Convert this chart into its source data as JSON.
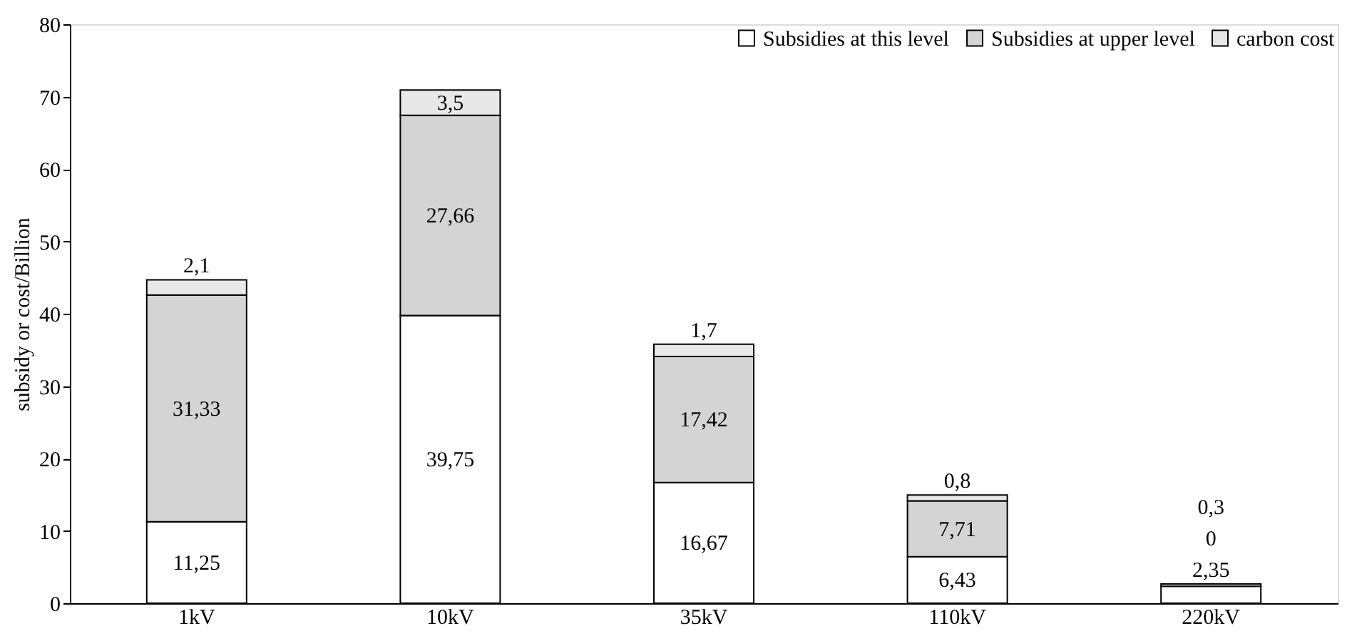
{
  "chart_data": {
    "type": "bar",
    "stacked": true,
    "ylabel": "subsidy or cost/Billion",
    "categories": [
      "1kV",
      "10kV",
      "35kV",
      "110kV",
      "220kV"
    ],
    "series": [
      {
        "name": "Subsidies at this level",
        "color": "#ffffff",
        "values": [
          11.25,
          39.75,
          16.67,
          6.43,
          2.35
        ],
        "value_labels": [
          "11,25",
          "39,75",
          "16,67",
          "6,43",
          "2,35"
        ]
      },
      {
        "name": "Subsidies at upper level",
        "color": "#d4d4d4",
        "values": [
          31.33,
          27.66,
          17.42,
          7.71,
          0
        ],
        "value_labels": [
          "31,33",
          "27,66",
          "17,42",
          "7,71",
          "0"
        ]
      },
      {
        "name": "carbon cost",
        "color": "#e8e8e8",
        "values": [
          2.1,
          3.5,
          1.7,
          0.8,
          0.3
        ],
        "value_labels": [
          "2,1",
          "3,5",
          "1,7",
          "0,8",
          "0,3"
        ]
      }
    ],
    "ylim": [
      0,
      80
    ],
    "yticks": [
      0,
      10,
      20,
      30,
      40,
      50,
      60,
      70,
      80
    ],
    "grid": false,
    "legend": "top right"
  }
}
